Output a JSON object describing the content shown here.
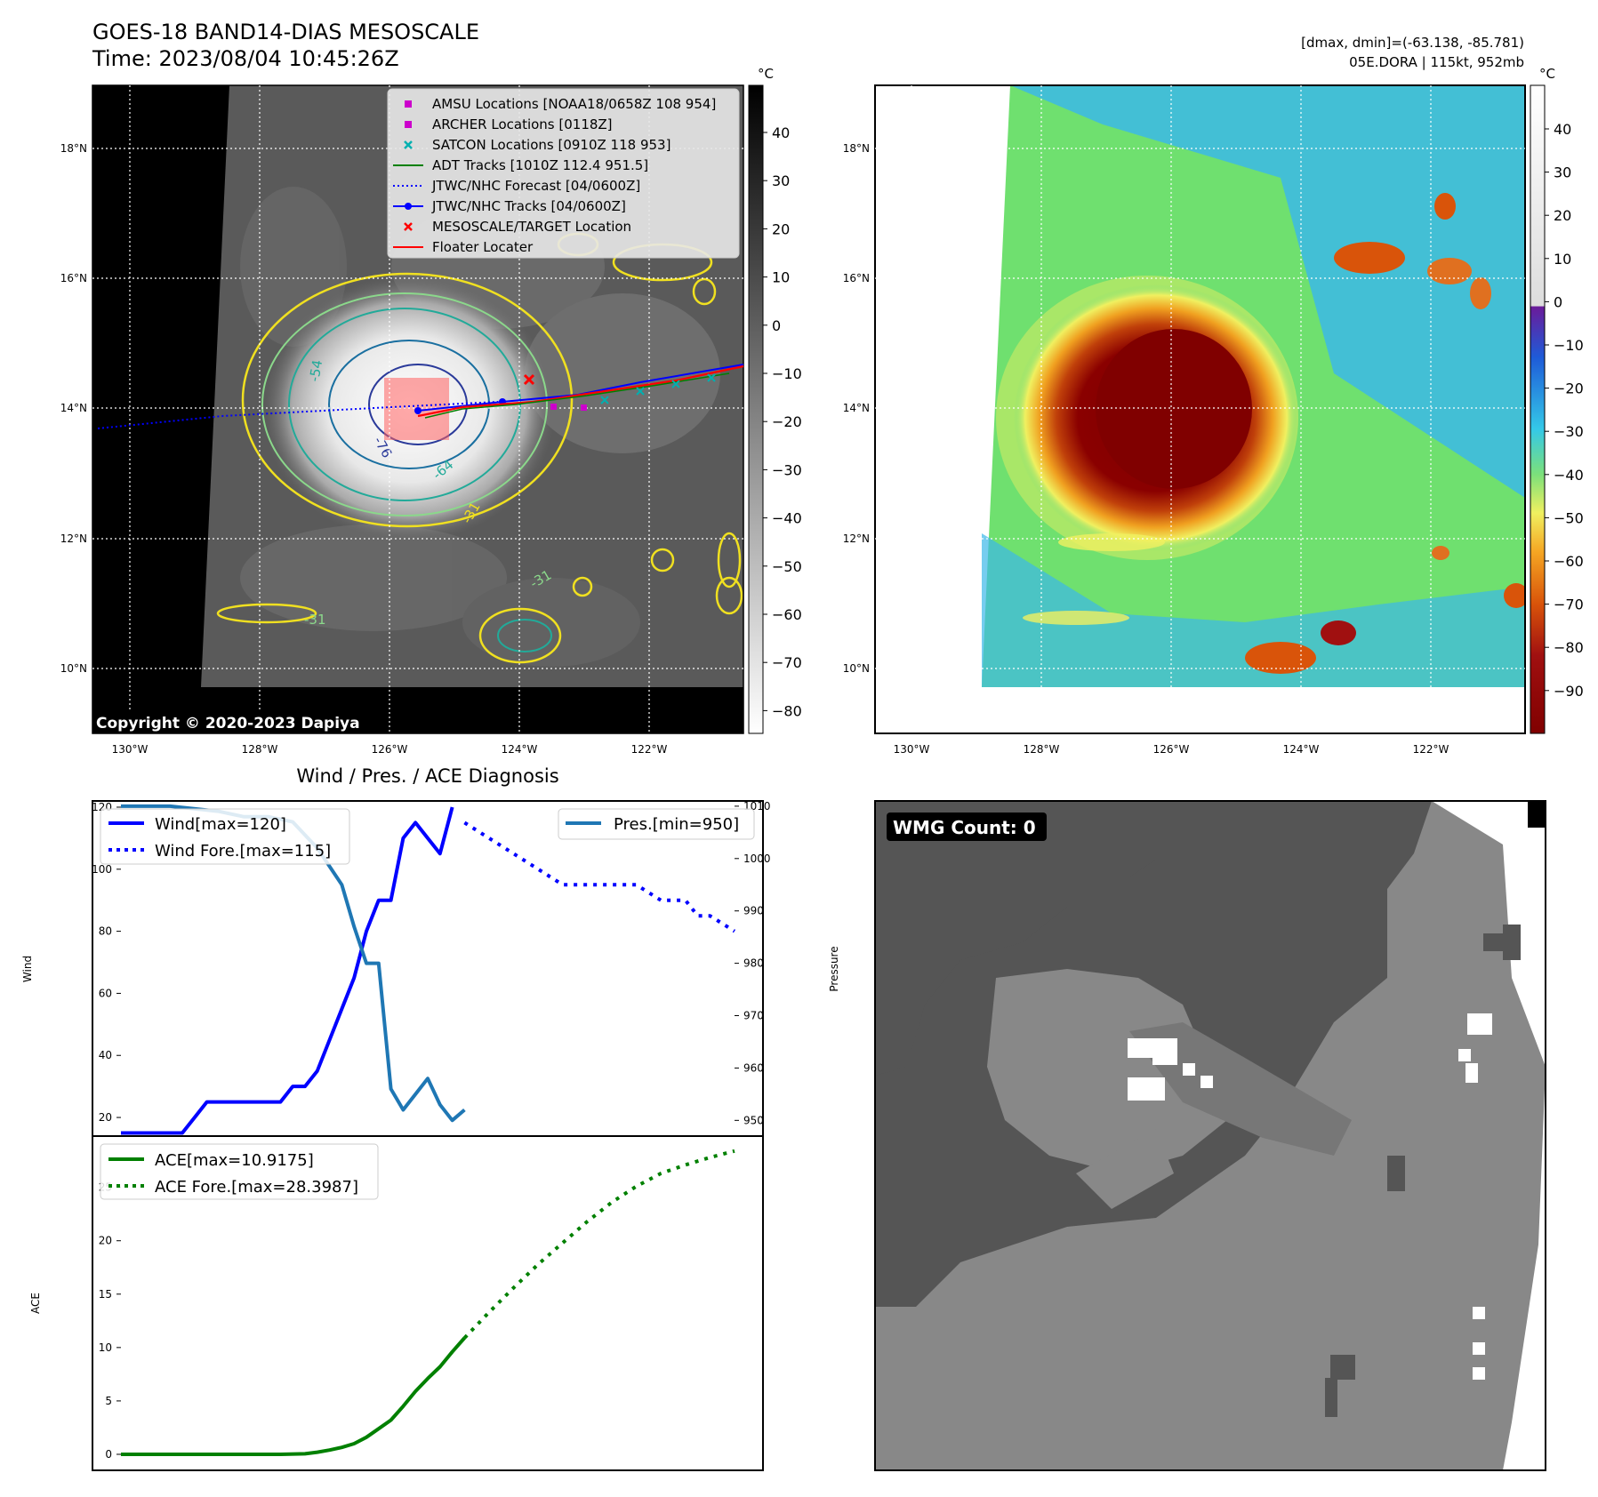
{
  "header": {
    "title": "GOES-18 BAND14-DIAS MESOSCALE",
    "time": "Time: 2023/08/04 10:45:26Z",
    "dmax_dmin": "[dmax, dmin]=(-63.138, -85.781)",
    "storm": "05E.DORA | 115kt, 952mb",
    "copyright": "Copyright © 2020-2023 Dapiya"
  },
  "map": {
    "lat_ticks": [
      "18°N",
      "16°N",
      "14°N",
      "12°N",
      "10°N"
    ],
    "lon_ticks": [
      "130°W",
      "128°W",
      "126°W",
      "124°W",
      "122°W"
    ],
    "contour_labels": [
      "-54",
      "-64",
      "-76",
      "-31",
      "-31",
      "-31"
    ],
    "legend": [
      {
        "label": "AMSU Locations [NOAA18/0658Z 108 954]",
        "color": "#cc00cc",
        "marker": "square"
      },
      {
        "label": "ARCHER Locations [0118Z]",
        "color": "#cc00cc",
        "marker": "square"
      },
      {
        "label": "SATCON Locations [0910Z 118 953]",
        "color": "#00b0b0",
        "marker": "x"
      },
      {
        "label": "ADT Tracks [1010Z 112.4 951.5]",
        "color": "#008000",
        "marker": "line"
      },
      {
        "label": "JTWC/NHC Forecast [04/0600Z]",
        "color": "#0000ff",
        "marker": "dotted"
      },
      {
        "label": "JTWC/NHC Tracks [04/0600Z]",
        "color": "#0000ff",
        "marker": "line-dot"
      },
      {
        "label": "MESOSCALE/TARGET Location",
        "color": "#ff0000",
        "marker": "x"
      },
      {
        "label": "Floater Locater",
        "color": "#ff0000",
        "marker": "line"
      }
    ],
    "gray_colorbar": {
      "unit": "°C",
      "ticks": [
        "40",
        "30",
        "20",
        "10",
        "0",
        "−10",
        "−20",
        "−30",
        "−40",
        "−50",
        "−60",
        "−70",
        "−80"
      ]
    },
    "color_colorbar": {
      "unit": "°C",
      "ticks": [
        "40",
        "30",
        "20",
        "10",
        "0",
        "−10",
        "−20",
        "−30",
        "−40",
        "−50",
        "−60",
        "−70",
        "−80",
        "−90"
      ]
    }
  },
  "wmg": {
    "label": "WMG Count: 0"
  },
  "chart_data": [
    {
      "type": "line",
      "title": "Wind / Pres. / ACE Diagnosis",
      "ylabel": "Wind",
      "y2label": "Pressure",
      "ylim": [
        14,
        122
      ],
      "y2lim": [
        947,
        1011
      ],
      "yticks": [
        "20",
        "40",
        "60",
        "80",
        "100",
        "120"
      ],
      "y2ticks": [
        "950",
        "960",
        "970",
        "980",
        "990",
        "1000",
        "1010"
      ],
      "legend_left": [
        "Wind[max=120]",
        "Wind Fore.[max=115]"
      ],
      "legend_right": [
        "Pres.[min=950]"
      ],
      "series": [
        {
          "name": "Wind[max=120]",
          "style": "solid",
          "color": "#0000ff",
          "x": [
            0,
            3,
            5,
            6,
            7,
            8,
            9,
            10,
            11,
            12,
            13,
            14,
            15,
            16,
            17,
            18,
            19,
            20,
            21,
            22,
            23,
            24,
            25,
            26,
            27
          ],
          "y": [
            15,
            15,
            15,
            20,
            25,
            25,
            25,
            25,
            25,
            25,
            25,
            30,
            30,
            35,
            45,
            55,
            65,
            80,
            90,
            90,
            110,
            115,
            110,
            105,
            120
          ]
        },
        {
          "name": "Wind Fore.[max=115]",
          "style": "dotted",
          "color": "#0000ff",
          "x": [
            28,
            30,
            32,
            34,
            36,
            40,
            41,
            42,
            44,
            45,
            46,
            47,
            48,
            50
          ],
          "y": [
            115,
            110,
            105,
            100,
            95,
            95,
            95,
            95,
            90,
            90,
            90,
            85,
            85,
            80
          ]
        },
        {
          "name": "Pres.[min=950]",
          "style": "solid",
          "color": "#1f77b4",
          "axis": "right",
          "x": [
            0,
            4,
            8,
            10,
            12,
            14,
            16,
            18,
            19,
            20,
            21,
            22,
            23,
            24,
            25,
            26,
            27,
            28
          ],
          "y": [
            1010,
            1010,
            1009,
            1008,
            1008,
            1007,
            1002,
            995,
            987,
            980,
            980,
            956,
            952,
            955,
            958,
            953,
            950,
            952
          ]
        }
      ]
    },
    {
      "type": "line",
      "ylabel": "ACE",
      "ylim": [
        -1.5,
        29.8
      ],
      "yticks": [
        "0",
        "5",
        "10",
        "15",
        "20",
        "25"
      ],
      "legend": [
        "ACE[max=10.9175]",
        "ACE Fore.[max=28.3987]"
      ],
      "series": [
        {
          "name": "ACE[max=10.9175]",
          "style": "solid",
          "color": "#008000",
          "x": [
            0,
            5,
            10,
            13,
            15,
            16,
            17,
            18,
            19,
            20,
            21,
            22,
            23,
            24,
            25,
            26,
            27,
            28
          ],
          "y": [
            0,
            0,
            0,
            0,
            0.05,
            0.2,
            0.4,
            0.65,
            1.0,
            1.6,
            2.4,
            3.2,
            4.5,
            5.9,
            7.1,
            8.2,
            9.6,
            10.9
          ]
        },
        {
          "name": "ACE Fore.[max=28.3987]",
          "style": "dotted",
          "color": "#008000",
          "x": [
            28,
            30,
            32,
            34,
            36,
            38,
            40,
            42,
            44,
            46,
            48,
            50
          ],
          "y": [
            10.9,
            13.3,
            15.6,
            17.8,
            19.8,
            21.8,
            23.6,
            25.1,
            26.3,
            27.1,
            27.8,
            28.4
          ]
        }
      ]
    }
  ]
}
